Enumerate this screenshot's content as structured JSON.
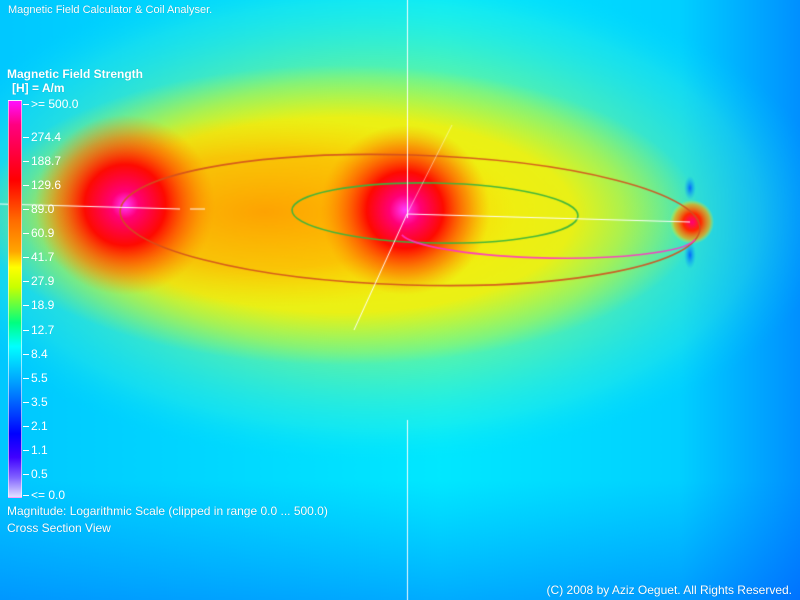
{
  "window": {
    "title": "Magnetic Field Calculator & Coil Analyser."
  },
  "legend": {
    "title": "Magnetic Field Strength",
    "unit": "[H] = A/m",
    "ticks": [
      ">= 500.0",
      "274.4",
      "188.7",
      "129.6",
      "89.0",
      "60.9",
      "41.7",
      "27.9",
      "18.9",
      "12.7",
      "8.4",
      "5.5",
      "3.5",
      "2.1",
      "1.1",
      "0.5",
      "<= 0.0"
    ]
  },
  "status": {
    "magnitude": "Magnitude: Logarithmic Scale (clipped in range 0.0 ... 500.0)",
    "view": "Cross Section View"
  },
  "footer": {
    "copyright": "(C) 2008 by Aziz Oeguet. All Rights Reserved."
  },
  "colors": {
    "background_far": "#00b4ff",
    "background_near": "#ffff00",
    "hot": "#ff0000",
    "peak": "#ff00ff",
    "coil_inner": "#3cb43c",
    "coil_outer": "#d24e1e",
    "coil_pink": "#ff33cc",
    "axes": "#ffffff"
  }
}
